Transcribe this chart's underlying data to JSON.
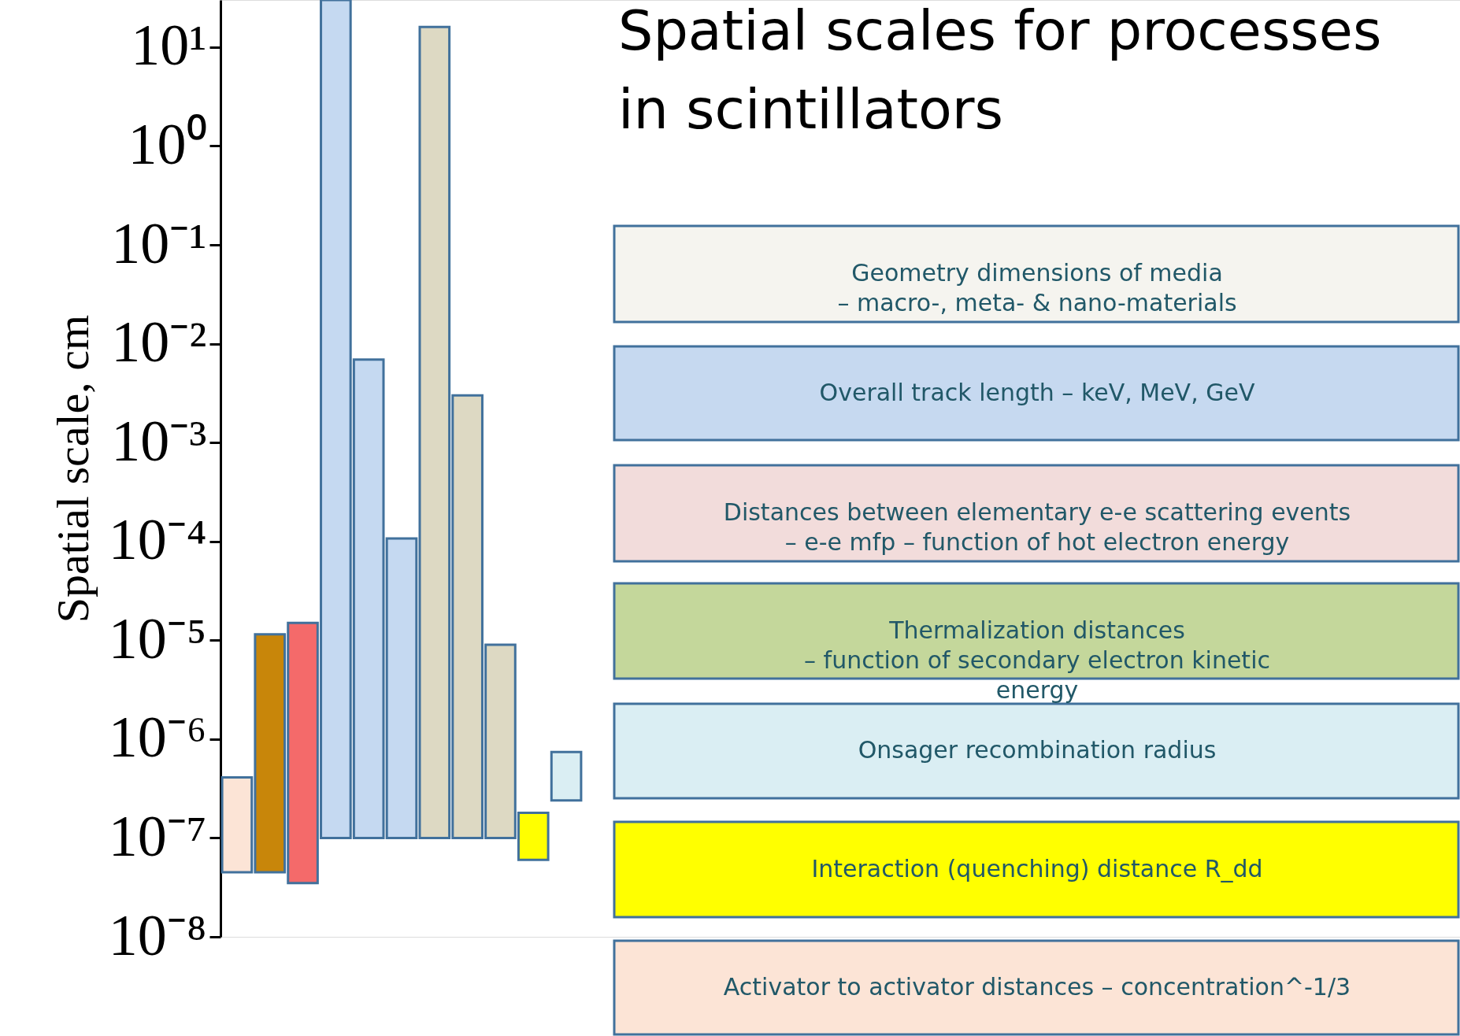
{
  "chart_data": {
    "type": "bar",
    "title": "Spatial scales for processes\nin scintillators",
    "ylabel": "Spatial scale, cm",
    "categories": [
      null,
      null,
      null,
      null,
      null,
      null,
      null,
      null,
      null,
      null,
      null
    ],
    "values": [
      3.65e-07,
      1.1455e-05,
      1.4965e-05,
      29.9999999,
      0.0068999,
      0.0001069,
      15.9999999,
      0.0029999,
      8.9e-06,
      1.2e-07,
      5e-07
    ],
    "base": [
      4.5e-08,
      4.5e-08,
      3.5e-08,
      1e-07,
      1e-07,
      1e-07,
      1e-07,
      1e-07,
      1e-07,
      6e-08,
      2.4e-07
    ],
    "colors": [
      "#fce4d6",
      "#c8860a",
      "#f46a6a",
      "#c5d9f1",
      "#c5d9f1",
      "#c5d9f1",
      "#ddd9c3",
      "#ddd9c3",
      "#ddd9c3",
      "#ffff00",
      "#daeef3"
    ],
    "log": "y",
    "ylim": [
      1e-08,
      30
    ],
    "yticks": [
      {
        "value": 1e-08,
        "label": "10⁻⁸"
      },
      {
        "value": 1e-07,
        "label": "10⁻⁷"
      },
      {
        "value": 1e-06,
        "label": "10⁻⁶"
      },
      {
        "value": 1e-05,
        "label": "10⁻⁵"
      },
      {
        "value": 0.0001,
        "label": "10⁻⁴"
      },
      {
        "value": 0.001,
        "label": "10⁻³"
      },
      {
        "value": 0.01,
        "label": "10⁻²"
      },
      {
        "value": 0.1,
        "label": "10⁻¹"
      },
      {
        "value": 1,
        "label": "10⁰"
      },
      {
        "value": 10,
        "label": "10¹"
      }
    ],
    "tick_labels": "y",
    "annotations": [
      "Geometry dimensions of media\n– macro-, meta- & nano-materials",
      "Overall track length – keV, MeV, GeV",
      "Distances between elementary e-e scattering events\n– e-e mfp – function of hot electron energy",
      "Thermalization distances\n– function of secondary electron kinetic\nenergy",
      "Onsager recombination radius",
      "Interaction (quenching) distance R_dd",
      "Activator to activator distances – concentration^-1/3"
    ]
  }
}
